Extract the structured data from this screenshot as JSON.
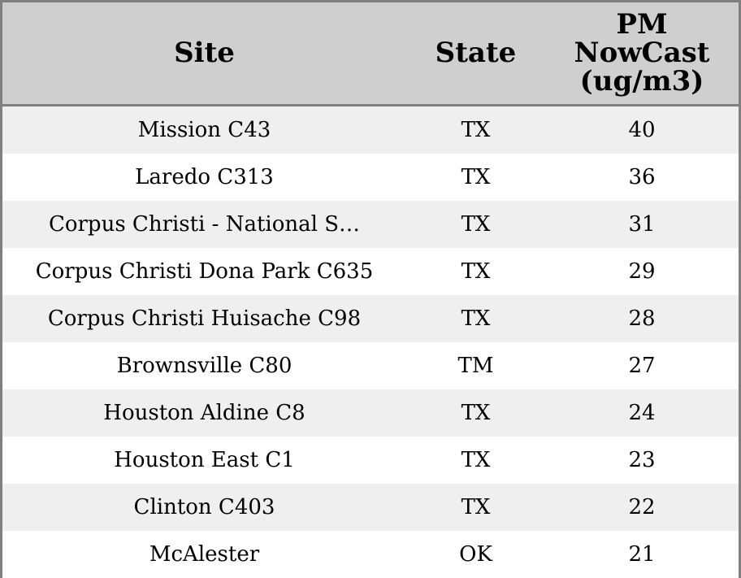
{
  "chart_data": {
    "type": "table",
    "columns": [
      "Site",
      "State",
      "PM NowCast (ug/m3)"
    ],
    "header_lines": {
      "site": [
        "Site"
      ],
      "state": [
        "State"
      ],
      "pm": [
        "PM",
        "NowCast",
        "(ug/m3)"
      ]
    },
    "rows": [
      {
        "site": "Mission C43",
        "state": "TX",
        "pm": 40
      },
      {
        "site": "Laredo C313",
        "state": "TX",
        "pm": 36
      },
      {
        "site": "Corpus Christi - National S…",
        "state": "TX",
        "pm": 31
      },
      {
        "site": "Corpus Christi Dona Park C635",
        "state": "TX",
        "pm": 29
      },
      {
        "site": "Corpus Christi Huisache C98",
        "state": "TX",
        "pm": 28
      },
      {
        "site": "Brownsville C80",
        "state": "TM",
        "pm": 27
      },
      {
        "site": "Houston Aldine C8",
        "state": "TX",
        "pm": 24
      },
      {
        "site": "Houston East C1",
        "state": "TX",
        "pm": 23
      },
      {
        "site": "Clinton C403",
        "state": "TX",
        "pm": 22
      },
      {
        "site": "McAlester",
        "state": "OK",
        "pm": 21
      }
    ]
  },
  "colors": {
    "header_background": "#cfcfcf",
    "stripe_background": "#efefef",
    "row_background": "#ffffff",
    "border": "#808080",
    "text": "#000000"
  }
}
